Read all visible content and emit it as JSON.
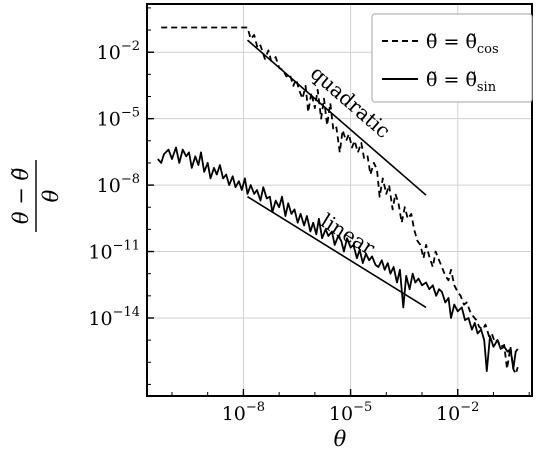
{
  "chart_data": {
    "type": "line",
    "xscale": "log",
    "yscale": "log",
    "xlim": [
      2e-11,
      1.2
    ],
    "ylim": [
      3e-18,
      1.5
    ],
    "grid": true,
    "legend_placement": "top-right",
    "xlabel": "θ",
    "ylabel": {
      "lhs": "θ − θ̃",
      "rhs": "θ"
    },
    "x_ticks": [
      {
        "value": 1e-08,
        "base": "10",
        "exp": "−8"
      },
      {
        "value": 1e-05,
        "base": "10",
        "exp": "−5"
      },
      {
        "value": 0.01,
        "base": "10",
        "exp": "−2"
      }
    ],
    "y_ticks": [
      {
        "value": 0.01,
        "base": "10",
        "exp": "−2"
      },
      {
        "value": 1e-05,
        "base": "10",
        "exp": "−5"
      },
      {
        "value": 1e-08,
        "base": "10",
        "exp": "−8"
      },
      {
        "value": 1e-11,
        "base": "10",
        "exp": "−11"
      },
      {
        "value": 1e-14,
        "base": "10",
        "exp": "−14"
      }
    ],
    "series": [
      {
        "name": "θ̃ = θ̃_cos",
        "legend": {
          "lhs": "θ̃ = θ̃",
          "sub": "cos"
        },
        "style": "dashed",
        "x": [
          5e-11,
          1e-10,
          3e-10,
          1e-09,
          3e-09,
          1.3e-08,
          1.6e-08,
          2e-08,
          2.5e-08,
          3e-08,
          4e-08,
          5e-08,
          6e-08,
          8e-08,
          1e-07,
          1.3e-07,
          1.6e-07,
          2e-07,
          2.5e-07,
          3e-07,
          3.6e-07,
          4.5e-07,
          5.5e-07,
          6.5e-07,
          8e-07,
          1e-06,
          1.2e-06,
          1.5e-06,
          1.8e-06,
          2.2e-06,
          2.7e-06,
          3.3e-06,
          4e-06,
          5e-06,
          6e-06,
          7.5e-06,
          9e-06,
          1.1e-05,
          1.3e-05,
          1.6e-05,
          2e-05,
          2.4e-05,
          3e-05,
          3.6e-05,
          4.5e-05,
          5.5e-05,
          6.5e-05,
          8e-05,
          0.0001,
          0.00012,
          0.00015,
          0.00018,
          0.00022,
          0.00027,
          0.00033,
          0.0004,
          0.0005,
          0.0006,
          0.00075,
          0.0009,
          0.0011,
          0.0013,
          0.0016,
          0.002,
          0.0024,
          0.003,
          0.0036,
          0.0045,
          0.0055,
          0.0065,
          0.008,
          0.01,
          0.012,
          0.015,
          0.018,
          0.022,
          0.027,
          0.033,
          0.04,
          0.05,
          0.06,
          0.075,
          0.09,
          0.11,
          0.13,
          0.16,
          0.2,
          0.24,
          0.3,
          0.36,
          0.42,
          0.48
        ],
        "y": [
          0.13,
          0.13,
          0.13,
          0.13,
          0.13,
          0.13,
          0.04,
          0.06,
          0.015,
          0.02,
          0.005,
          0.012,
          0.004,
          0.006,
          0.002,
          0.0015,
          0.0008,
          0.001,
          0.0003,
          0.0006,
          0.0002,
          8e-05,
          0.0003,
          2e-05,
          0.00015,
          3e-05,
          0.0002,
          1e-05,
          8e-05,
          5e-06,
          5e-05,
          3e-06,
          4e-06,
          3e-07,
          3e-06,
          1e-06,
          2e-06,
          5e-07,
          1e-06,
          3e-07,
          8e-07,
          1.5e-07,
          2e-07,
          3e-08,
          1e-07,
          5e-08,
          3e-09,
          2e-08,
          4e-09,
          1e-08,
          8e-10,
          4e-09,
          1.5e-09,
          2e-10,
          1e-09,
          3e-10,
          5e-10,
          1e-10,
          3e-11,
          2e-11,
          5e-12,
          2e-11,
          6e-12,
          2e-12,
          1e-11,
          4e-12,
          2e-12,
          8e-13,
          5e-13,
          1.5e-12,
          3e-13,
          1.5e-13,
          1e-13,
          4e-14,
          5e-14,
          2e-14,
          1.2e-14,
          8e-15,
          4e-15,
          3e-15,
          5e-15,
          1.5e-15,
          2e-15,
          8e-16,
          1e-15,
          5e-16,
          6e-16,
          5e-17,
          5e-16,
          5e-17,
          3e-17,
          6e-17
        ]
      },
      {
        "name": "θ̃ = θ̃_sin",
        "legend": {
          "lhs": "θ̃ = θ̃",
          "sub": "sin"
        },
        "style": "solid",
        "x": [
          4e-11,
          5e-11,
          6e-11,
          8e-11,
          1e-10,
          1.3e-10,
          1.6e-10,
          2e-10,
          2.5e-10,
          3e-10,
          3.6e-10,
          4.5e-10,
          5.5e-10,
          6.5e-10,
          8e-10,
          1e-09,
          1.2e-09,
          1.5e-09,
          1.8e-09,
          2.2e-09,
          2.7e-09,
          3.3e-09,
          4e-09,
          5e-09,
          6e-09,
          7.5e-09,
          9e-09,
          1.1e-08,
          1.3e-08,
          1.6e-08,
          2e-08,
          2.4e-08,
          3e-08,
          3.6e-08,
          4.5e-08,
          5.5e-08,
          6.5e-08,
          8e-08,
          1e-07,
          1.2e-07,
          1.5e-07,
          1.8e-07,
          2.2e-07,
          2.7e-07,
          3.3e-07,
          4e-07,
          5e-07,
          6e-07,
          7.5e-07,
          9e-07,
          1.1e-06,
          1.3e-06,
          1.6e-06,
          2e-06,
          2.4e-06,
          3e-06,
          3.6e-06,
          4.5e-06,
          5.5e-06,
          6.5e-06,
          8e-06,
          1e-05,
          1.2e-05,
          1.5e-05,
          1.8e-05,
          2.2e-05,
          2.7e-05,
          3.3e-05,
          4e-05,
          5e-05,
          6e-05,
          7.5e-05,
          9e-05,
          0.00011,
          0.00013,
          0.00016,
          0.0002,
          0.00024,
          0.0003,
          0.00036,
          0.00045,
          0.00055,
          0.00065,
          0.0008,
          0.001,
          0.0013,
          0.0016,
          0.002,
          0.0025,
          0.003,
          0.0036,
          0.0045,
          0.0055,
          0.0065,
          0.008,
          0.01,
          0.013,
          0.016,
          0.02,
          0.025,
          0.03,
          0.036,
          0.045,
          0.055,
          0.065,
          0.08,
          0.1,
          0.13,
          0.16,
          0.2,
          0.25,
          0.3,
          0.36,
          0.42,
          0.48
        ],
        "y": [
          1.5e-07,
          1e-07,
          2.5e-07,
          4e-07,
          1.5e-07,
          5e-07,
          1e-07,
          4e-07,
          2e-07,
          3e-07,
          6e-08,
          2e-07,
          8e-08,
          3e-07,
          4e-08,
          1e-07,
          2e-08,
          6e-08,
          3e-08,
          8e-08,
          2e-08,
          3e-08,
          1e-08,
          2.5e-08,
          8e-09,
          1.5e-08,
          6e-09,
          2e-08,
          4e-09,
          1e-08,
          4e-09,
          6e-09,
          2e-09,
          8e-09,
          2.5e-09,
          3e-09,
          6e-10,
          2e-09,
          1e-09,
          3e-09,
          4e-10,
          1.5e-09,
          5e-10,
          8e-10,
          2e-10,
          5e-10,
          1.5e-10,
          4e-10,
          8e-11,
          2e-10,
          6e-11,
          3e-10,
          4e-11,
          1e-10,
          5e-11,
          8e-11,
          2e-11,
          5e-11,
          3e-11,
          1e-11,
          4e-11,
          1.5e-11,
          2e-11,
          5e-12,
          1.2e-11,
          3e-12,
          8e-12,
          4e-12,
          6e-12,
          2.5e-12,
          2e-12,
          4e-12,
          1.5e-12,
          3e-12,
          1e-12,
          2e-12,
          4e-13,
          1.5e-12,
          3e-14,
          8e-13,
          2e-13,
          1e-12,
          4e-13,
          6e-13,
          3e-13,
          4e-13,
          2e-13,
          3e-13,
          1e-13,
          2e-13,
          1.5e-13,
          5e-14,
          8e-14,
          1e-14,
          4e-14,
          2e-14,
          3e-14,
          8e-15,
          1e-14,
          3e-15,
          6e-15,
          2e-15,
          3e-15,
          1e-15,
          4e-17,
          1.5e-15,
          5e-16,
          1e-15,
          4e-16,
          5e-16,
          3e-16,
          4e-16,
          5e-17,
          3e-16,
          4e-16
        ]
      }
    ],
    "reference_lines": [
      {
        "label": "quadratic",
        "x": [
          1.3e-08,
          0.0013
        ],
        "y": [
          0.035,
          3.5e-09
        ]
      },
      {
        "label": "linear",
        "x": [
          1.3e-08,
          0.0013
        ],
        "y": [
          3e-09,
          3e-14
        ]
      }
    ]
  }
}
